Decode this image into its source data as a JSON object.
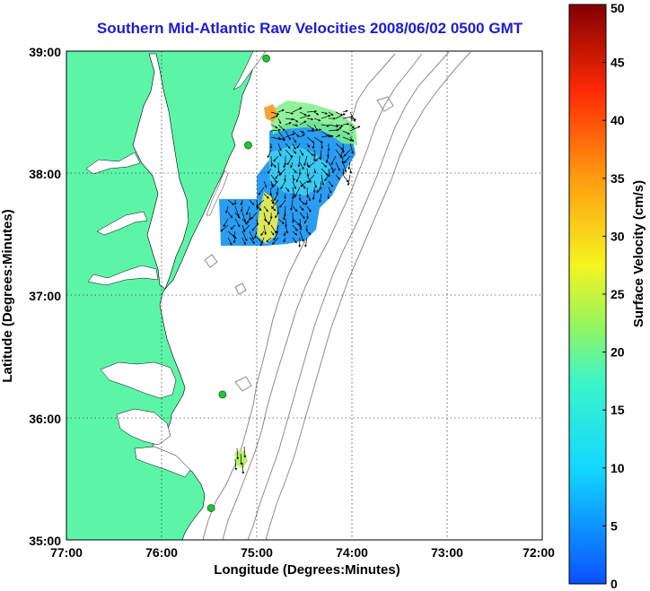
{
  "title": "Southern Mid-Atlantic Raw Velocities 2008/06/02 0500 GMT",
  "axes": {
    "xlabel": "Longitude (Degrees:Minutes)",
    "ylabel": "Latitude (Degrees:Minutes)",
    "xticks": [
      "77:00",
      "76:00",
      "75:00",
      "74:00",
      "73:00",
      "72:00"
    ],
    "yticks": [
      "39:00",
      "38:00",
      "37:00",
      "36:00",
      "35:00"
    ],
    "xlim": [
      -77,
      -72
    ],
    "ylim": [
      35,
      39
    ]
  },
  "colorbar": {
    "label": "Surface Velocity (cm/s)",
    "ticks": [
      "0",
      "5",
      "10",
      "15",
      "20",
      "25",
      "30",
      "35",
      "40",
      "45",
      "50"
    ],
    "range": [
      0,
      50
    ]
  },
  "colors": {
    "land": "#5cf5a8",
    "title": "#1c1cd6",
    "bathymetry": "#8c8c8c",
    "station": "#22c33a"
  },
  "stations": [
    {
      "lon": -74.9,
      "lat": 38.94
    },
    {
      "lon": -75.09,
      "lat": 38.23
    },
    {
      "lon": -75.36,
      "lat": 36.19
    },
    {
      "lon": -75.48,
      "lat": 35.26
    }
  ]
}
